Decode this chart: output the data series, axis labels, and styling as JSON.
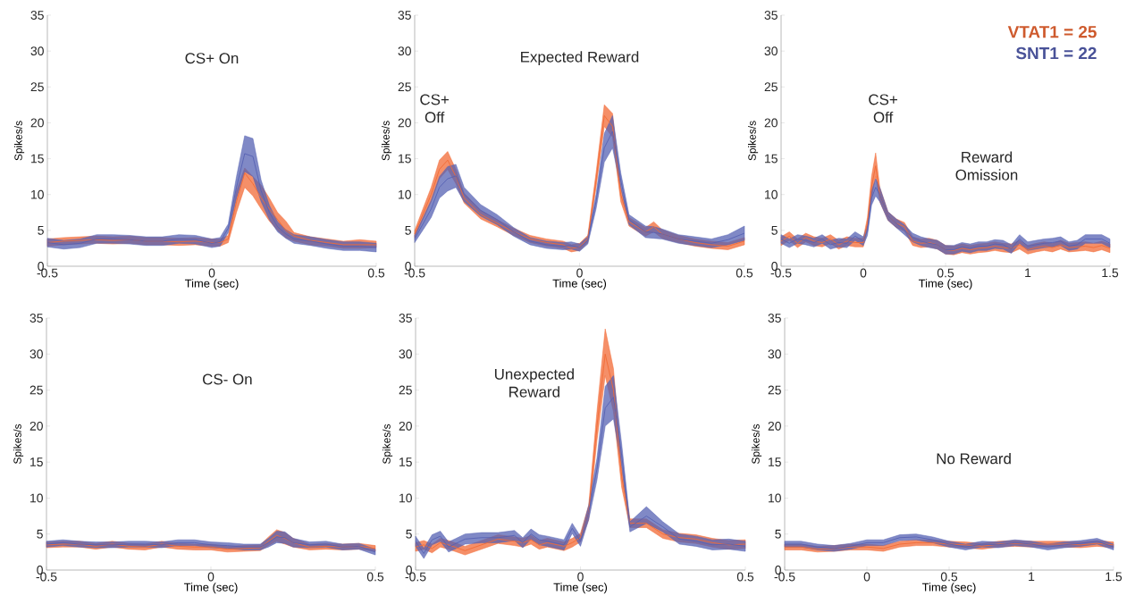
{
  "chart_data": [
    {
      "type": "line",
      "xlabel": "Time (sec)",
      "ylabel": "Spikes/s",
      "xlim": [
        -0.5,
        0.5
      ],
      "ylim": [
        0,
        35
      ],
      "xticks": [
        -0.5,
        0,
        0.5
      ],
      "yticks": [
        0,
        5,
        10,
        15,
        20,
        25,
        30,
        35
      ],
      "annotations": [
        "CS+ On"
      ],
      "x": [
        -0.5,
        -0.45,
        -0.4,
        -0.35,
        -0.3,
        -0.25,
        -0.2,
        -0.15,
        -0.1,
        -0.05,
        0,
        0.025,
        0.05,
        0.075,
        0.1,
        0.125,
        0.15,
        0.175,
        0.2,
        0.225,
        0.25,
        0.3,
        0.35,
        0.4,
        0.45,
        0.5
      ],
      "series": [
        {
          "color": "#f26a35",
          "values": [
            3.3,
            3.5,
            3.6,
            3.7,
            3.6,
            3.7,
            3.5,
            3.5,
            3.4,
            3.5,
            3.3,
            3.3,
            3.8,
            9,
            13,
            11.5,
            9.5,
            8,
            6.5,
            5,
            4.2,
            3.6,
            3.3,
            3,
            3,
            3
          ],
          "lower": [
            2.8,
            3,
            3.1,
            3.2,
            3.1,
            3.2,
            3,
            3,
            2.9,
            3,
            2.8,
            2.8,
            3.3,
            7.5,
            11,
            9.8,
            8,
            6.3,
            5,
            4,
            3.5,
            3,
            2.8,
            2.5,
            2.5,
            2.6
          ],
          "upper": [
            3.8,
            4,
            4.1,
            4.2,
            4.1,
            4.2,
            4,
            4,
            3.9,
            4,
            3.8,
            3.8,
            4.3,
            10.5,
            13.7,
            12.5,
            11.3,
            9.5,
            7.5,
            6.3,
            4.7,
            4.1,
            3.8,
            3.5,
            3.7,
            3.5
          ]
        },
        {
          "color": "#5661b3",
          "values": [
            3.3,
            3,
            3.2,
            3.8,
            3.8,
            3.7,
            3.5,
            3.5,
            3.8,
            3.7,
            3.2,
            3.4,
            5.3,
            11,
            15.7,
            15.3,
            10.5,
            7.5,
            5.5,
            4.5,
            3.8,
            3.5,
            3.1,
            2.8,
            2.8,
            2.6
          ],
          "lower": [
            2.7,
            2.4,
            2.6,
            3.2,
            3.2,
            3.1,
            2.9,
            2.9,
            3.2,
            3.1,
            2.6,
            2.8,
            4.7,
            9.5,
            13.2,
            12.5,
            9,
            6.5,
            4.8,
            3.9,
            3.2,
            2.9,
            2.5,
            2.2,
            2.2,
            2
          ],
          "upper": [
            3.9,
            3.6,
            3.8,
            4.4,
            4.4,
            4.3,
            4.1,
            4.1,
            4.4,
            4.3,
            3.8,
            4,
            5.9,
            12.5,
            18.2,
            17.8,
            12,
            8.5,
            6.2,
            5.1,
            4.4,
            4.1,
            3.7,
            3.4,
            3.4,
            3.2
          ]
        }
      ]
    },
    {
      "type": "line",
      "xlabel": "Time (sec)",
      "ylabel": "Spikes/s",
      "xlim": [
        -0.5,
        0.5
      ],
      "ylim": [
        0,
        35
      ],
      "xticks": [
        -0.5,
        0,
        0.5
      ],
      "yticks": [
        0,
        5,
        10,
        15,
        20,
        25,
        30,
        35
      ],
      "annotations": [
        "Expected Reward",
        "CS+ Off"
      ],
      "x": [
        -0.5,
        -0.45,
        -0.425,
        -0.4,
        -0.375,
        -0.35,
        -0.3,
        -0.25,
        -0.2,
        -0.15,
        -0.1,
        -0.05,
        -0.025,
        0,
        0.025,
        0.05,
        0.075,
        0.1,
        0.125,
        0.15,
        0.2,
        0.225,
        0.25,
        0.3,
        0.35,
        0.4,
        0.45,
        0.5
      ],
      "series": [
        {
          "color": "#f26a35",
          "values": [
            4.5,
            10,
            13.5,
            14.8,
            12.5,
            9.5,
            7.2,
            6,
            4.8,
            3.8,
            3.3,
            3,
            2.5,
            2.7,
            3.8,
            12,
            21,
            19.5,
            10,
            6.2,
            4.8,
            5.5,
            4.5,
            3.8,
            3.3,
            3,
            2.8,
            3.5
          ],
          "lower": [
            4,
            9,
            12.2,
            13.5,
            11.5,
            8.8,
            6.6,
            5.5,
            4.3,
            3.3,
            2.8,
            2.5,
            2,
            2.2,
            3.3,
            11,
            19.5,
            18,
            9,
            5.6,
            4.2,
            4.8,
            3.9,
            3.3,
            2.8,
            2.5,
            2.3,
            3
          ],
          "upper": [
            5,
            11,
            14.8,
            16,
            13.5,
            10.2,
            7.8,
            6.5,
            5.3,
            4.3,
            3.8,
            3.5,
            3,
            3.2,
            4.3,
            13,
            22.5,
            21.3,
            11,
            6.8,
            5.4,
            6.2,
            5.1,
            4.3,
            3.8,
            3.5,
            3.3,
            4
          ]
        },
        {
          "color": "#5661b3",
          "values": [
            3.8,
            8,
            11,
            12.2,
            12.6,
            10,
            7.8,
            6.5,
            4.8,
            3.5,
            3,
            2.8,
            2.9,
            2.6,
            3.6,
            9,
            16.5,
            18.8,
            12,
            6.5,
            4.8,
            4.7,
            4.5,
            3.8,
            3.5,
            3.2,
            3.7,
            4.6
          ],
          "lower": [
            3.3,
            6.8,
            9.5,
            10.5,
            11,
            9,
            7,
            5.8,
            4.2,
            3,
            2.5,
            2.3,
            2.4,
            2.1,
            3.1,
            8,
            14.5,
            16.5,
            11,
            5.8,
            4,
            3.9,
            3.8,
            3.2,
            2.9,
            2.6,
            3,
            3.6
          ],
          "upper": [
            4.3,
            9.2,
            12.5,
            13.9,
            14.2,
            11,
            8.6,
            7.2,
            5.4,
            4,
            3.5,
            3.3,
            3.4,
            3.1,
            4.1,
            10,
            18.5,
            21,
            13,
            7.2,
            5.6,
            5.5,
            5.2,
            4.4,
            4.1,
            3.8,
            4.4,
            5.6
          ]
        }
      ]
    },
    {
      "type": "line",
      "xlabel": "Time (sec)",
      "ylabel": "Spikes/s",
      "xlim": [
        -0.5,
        1.5
      ],
      "ylim": [
        0,
        35
      ],
      "xticks": [
        -0.5,
        0,
        0.5,
        1,
        1.5
      ],
      "yticks": [
        0,
        5,
        10,
        15,
        20,
        25,
        30,
        35
      ],
      "annotations": [
        "CS+ Off",
        "Reward Omission"
      ],
      "legend": "top right",
      "x": [
        -0.5,
        -0.45,
        -0.4,
        -0.35,
        -0.3,
        -0.25,
        -0.2,
        -0.15,
        -0.1,
        -0.05,
        0,
        0.025,
        0.05,
        0.075,
        0.1,
        0.15,
        0.2,
        0.25,
        0.3,
        0.35,
        0.4,
        0.45,
        0.5,
        0.55,
        0.6,
        0.65,
        0.7,
        0.75,
        0.8,
        0.85,
        0.9,
        0.95,
        1,
        1.05,
        1.1,
        1.15,
        1.2,
        1.25,
        1.3,
        1.35,
        1.4,
        1.45,
        1.5
      ],
      "series": [
        {
          "name": "VTAT1 = 25",
          "color": "#f26a35",
          "values": [
            3.5,
            4.2,
            3.2,
            4,
            3.5,
            3.3,
            3.8,
            3,
            3.5,
            3.3,
            3.3,
            6,
            11,
            14,
            10,
            7,
            6,
            5.5,
            3.5,
            3.2,
            3.3,
            3,
            2.3,
            2.2,
            2.5,
            2.3,
            2.5,
            2.6,
            2.8,
            2.6,
            2.5,
            3,
            2.3,
            2.6,
            2.8,
            2.6,
            3,
            2.6,
            2.7,
            2.8,
            2.6,
            2.9,
            2.5
          ],
          "lower": [
            2.9,
            3.6,
            2.6,
            3.4,
            2.9,
            2.7,
            3.2,
            2.4,
            2.9,
            2.7,
            2.7,
            5.2,
            9.5,
            12.5,
            9,
            6.4,
            5.4,
            4.9,
            2.9,
            2.6,
            2.7,
            2.4,
            1.7,
            1.6,
            1.9,
            1.7,
            1.9,
            2,
            2.2,
            2,
            1.9,
            2.4,
            1.7,
            2,
            2.2,
            2,
            2.4,
            2,
            2.1,
            2.2,
            2,
            2.3,
            1.9
          ],
          "upper": [
            4.1,
            4.8,
            3.8,
            4.6,
            4.1,
            3.9,
            4.4,
            3.6,
            4.1,
            3.9,
            3.9,
            6.8,
            12.5,
            15.8,
            11,
            7.6,
            6.6,
            6.1,
            4.1,
            3.8,
            3.9,
            3.6,
            2.9,
            2.8,
            3.1,
            2.9,
            3.1,
            3.2,
            3.4,
            3.2,
            3.1,
            3.6,
            2.9,
            3.2,
            3.4,
            3.2,
            3.6,
            3.2,
            3.3,
            3.4,
            3.2,
            3.5,
            3.1
          ]
        },
        {
          "name": "SNT1 = 22",
          "color": "#5661b3",
          "values": [
            3.8,
            3.2,
            3.8,
            3.6,
            3.3,
            3.8,
            3,
            3.3,
            3.2,
            4.2,
            3.5,
            5,
            9.5,
            11,
            10,
            7,
            6,
            5,
            4,
            3.5,
            3.2,
            3,
            2.3,
            2.3,
            2.7,
            2.5,
            2.8,
            2.8,
            3.1,
            3,
            2.4,
            3.8,
            2.8,
            3,
            3.2,
            3.3,
            3.5,
            2.8,
            3,
            3.8,
            3.8,
            3.8,
            3.2
          ],
          "lower": [
            3.2,
            2.6,
            3.2,
            3,
            2.7,
            3.2,
            2.4,
            2.7,
            2.6,
            3.6,
            2.9,
            4.3,
            8.5,
            9.8,
            9,
            6.4,
            5.4,
            4.4,
            3.4,
            2.9,
            2.6,
            2.4,
            1.7,
            1.7,
            2.1,
            1.9,
            2.2,
            2.2,
            2.5,
            2.4,
            1.8,
            3.2,
            2.2,
            2.4,
            2.6,
            2.7,
            2.9,
            2.2,
            2.4,
            3.2,
            3.2,
            3.2,
            2.6
          ],
          "upper": [
            4.4,
            3.8,
            4.4,
            4.2,
            3.9,
            4.4,
            3.6,
            3.9,
            3.8,
            4.8,
            4.1,
            5.7,
            10.5,
            12.2,
            11,
            7.6,
            6.6,
            5.8,
            4.6,
            4.1,
            3.8,
            3.6,
            2.9,
            2.9,
            3.3,
            3.1,
            3.4,
            3.4,
            3.7,
            3.6,
            3,
            4.4,
            3.4,
            3.6,
            3.8,
            3.9,
            4.1,
            3.4,
            3.6,
            4.4,
            4.4,
            4.4,
            3.8
          ]
        }
      ]
    },
    {
      "type": "line",
      "xlabel": "Time (sec)",
      "ylabel": "Spikes/s",
      "xlim": [
        -0.5,
        0.5
      ],
      "ylim": [
        0,
        35
      ],
      "xticks": [
        -0.5,
        0,
        0.5
      ],
      "yticks": [
        0,
        5,
        10,
        15,
        20,
        25,
        30,
        35
      ],
      "annotations": [
        "CS- On"
      ],
      "x": [
        -0.5,
        -0.45,
        -0.4,
        -0.35,
        -0.3,
        -0.25,
        -0.2,
        -0.15,
        -0.1,
        -0.05,
        0,
        0.05,
        0.1,
        0.15,
        0.175,
        0.2,
        0.225,
        0.25,
        0.3,
        0.35,
        0.4,
        0.45,
        0.5
      ],
      "series": [
        {
          "color": "#f26a35",
          "values": [
            3.5,
            3.6,
            3.6,
            3.3,
            3.6,
            3.3,
            3.2,
            3.6,
            3.3,
            3.2,
            3.2,
            2.9,
            3,
            3.1,
            4,
            4.8,
            4.4,
            3.8,
            3.2,
            3.3,
            3.2,
            3.3,
            3
          ],
          "lower": [
            3.1,
            3.2,
            3.2,
            2.9,
            3.2,
            2.9,
            2.8,
            3.2,
            2.9,
            2.8,
            2.8,
            2.5,
            2.6,
            2.7,
            3.4,
            4,
            3.6,
            3.2,
            2.8,
            2.9,
            2.8,
            2.9,
            2.6
          ],
          "upper": [
            3.9,
            4,
            4,
            3.7,
            4,
            3.7,
            3.6,
            4,
            3.7,
            3.6,
            3.6,
            3.3,
            3.4,
            3.5,
            4.6,
            5.6,
            5.2,
            4.4,
            3.6,
            3.7,
            3.6,
            3.7,
            3.4
          ]
        },
        {
          "color": "#5661b3",
          "values": [
            3.6,
            3.8,
            3.6,
            3.5,
            3.5,
            3.6,
            3.6,
            3.5,
            3.8,
            3.8,
            3.5,
            3.4,
            3.2,
            3.2,
            3.8,
            4.6,
            4.5,
            3.8,
            3.5,
            3.6,
            3.2,
            3.3,
            2.5
          ],
          "lower": [
            3.2,
            3.4,
            3.2,
            3.1,
            3.1,
            3.2,
            3.2,
            3.1,
            3.4,
            3.4,
            3.1,
            3,
            2.8,
            2.8,
            3.2,
            3.8,
            3.7,
            3.2,
            3.1,
            3.2,
            2.8,
            2.9,
            2.1
          ],
          "upper": [
            4,
            4.2,
            4,
            3.9,
            3.9,
            4,
            4,
            3.9,
            4.2,
            4.2,
            3.9,
            3.8,
            3.6,
            3.6,
            4.4,
            5.4,
            5.3,
            4.4,
            3.9,
            4,
            3.6,
            3.7,
            2.9
          ]
        }
      ]
    },
    {
      "type": "line",
      "xlabel": "Time (sec)",
      "ylabel": "Spikes/s",
      "xlim": [
        -0.5,
        0.5
      ],
      "ylim": [
        0,
        35
      ],
      "xticks": [
        -0.5,
        0,
        0.5
      ],
      "yticks": [
        0,
        5,
        10,
        15,
        20,
        25,
        30,
        35
      ],
      "annotations": [
        "Unexpected Reward"
      ],
      "x": [
        -0.5,
        -0.475,
        -0.45,
        -0.425,
        -0.4,
        -0.35,
        -0.3,
        -0.25,
        -0.2,
        -0.175,
        -0.15,
        -0.125,
        -0.1,
        -0.05,
        -0.025,
        0,
        0.025,
        0.05,
        0.075,
        0.1,
        0.125,
        0.15,
        0.2,
        0.25,
        0.3,
        0.35,
        0.4,
        0.45,
        0.5
      ],
      "series": [
        {
          "color": "#f26a35",
          "values": [
            3.2,
            3.5,
            3,
            3.8,
            3.5,
            2.7,
            3.5,
            4.3,
            4,
            3.8,
            4.2,
            3.5,
            3.8,
            3.3,
            3.8,
            4.5,
            8,
            20,
            30,
            25,
            13,
            6.5,
            6.5,
            5,
            4.5,
            4.3,
            3.8,
            3.5,
            3.6
          ],
          "lower": [
            2.6,
            2.9,
            2.4,
            3.2,
            2.9,
            2.1,
            2.9,
            3.7,
            3.4,
            3.2,
            3.6,
            2.9,
            3.2,
            2.7,
            3.2,
            3.9,
            7,
            18,
            27,
            22,
            11.5,
            5.9,
            5.9,
            4.4,
            3.9,
            3.7,
            3.2,
            2.9,
            3
          ],
          "upper": [
            3.8,
            4.1,
            3.6,
            4.4,
            4.1,
            3.3,
            4.1,
            4.9,
            4.6,
            4.4,
            4.8,
            4.1,
            4.4,
            3.9,
            4.4,
            5.1,
            9,
            22,
            33.5,
            28,
            14.5,
            7.1,
            7.1,
            5.6,
            5.1,
            4.9,
            4.4,
            4.1,
            4.2
          ]
        },
        {
          "color": "#5661b3",
          "values": [
            4,
            2.3,
            4.2,
            4.7,
            3.2,
            4.3,
            4.5,
            4.5,
            4.8,
            3.8,
            5,
            4.2,
            4,
            3.5,
            5.8,
            4,
            8,
            14,
            22.5,
            24,
            16,
            6,
            7.5,
            6,
            4.3,
            4,
            3.5,
            3.6,
            3.3
          ],
          "lower": [
            3.3,
            1.6,
            3.5,
            4,
            2.5,
            3.6,
            3.8,
            3.8,
            4.1,
            3.1,
            4.3,
            3.5,
            3.3,
            2.8,
            5.1,
            3.3,
            7,
            12.5,
            20,
            21,
            14.5,
            5.3,
            6.5,
            5.3,
            3.6,
            3.3,
            2.8,
            2.9,
            2.6
          ],
          "upper": [
            4.7,
            3,
            4.9,
            5.4,
            3.9,
            5,
            5.2,
            5.2,
            5.5,
            4.5,
            5.7,
            4.9,
            4.7,
            4.2,
            6.5,
            4.7,
            9,
            15.5,
            25.5,
            27,
            17.5,
            6.7,
            8.8,
            6.7,
            5,
            4.7,
            4.2,
            4.3,
            4
          ]
        }
      ]
    },
    {
      "type": "line",
      "xlabel": "Time (sec)",
      "ylabel": "Spikes/s",
      "xlim": [
        -0.5,
        1.5
      ],
      "ylim": [
        0,
        35
      ],
      "xticks": [
        -0.5,
        0,
        0.5,
        1,
        1.5
      ],
      "yticks": [
        0,
        5,
        10,
        15,
        20,
        25,
        30,
        35
      ],
      "annotations": [
        "No Reward"
      ],
      "x": [
        -0.5,
        -0.4,
        -0.3,
        -0.2,
        -0.1,
        0,
        0.1,
        0.2,
        0.3,
        0.4,
        0.5,
        0.6,
        0.7,
        0.8,
        0.9,
        1,
        1.1,
        1.2,
        1.3,
        1.4,
        1.5
      ],
      "series": [
        {
          "color": "#f26a35",
          "values": [
            3.2,
            3.2,
            2.9,
            3,
            3.2,
            3.2,
            3,
            3.6,
            3.8,
            3.8,
            3.6,
            3.5,
            3.3,
            3.6,
            3.7,
            3.6,
            3.6,
            3.6,
            3.5,
            3.7,
            3.5
          ],
          "lower": [
            2.8,
            2.8,
            2.5,
            2.6,
            2.8,
            2.8,
            2.6,
            3.2,
            3.4,
            3.4,
            3.2,
            3.1,
            2.9,
            3.2,
            3.3,
            3.2,
            3.2,
            3.2,
            3.1,
            3.3,
            3.1
          ],
          "upper": [
            3.6,
            3.6,
            3.3,
            3.4,
            3.6,
            3.6,
            3.4,
            4,
            4.2,
            4.2,
            4,
            3.9,
            3.7,
            4,
            4.1,
            4,
            4,
            4,
            3.9,
            4.1,
            3.9
          ]
        },
        {
          "color": "#5661b3",
          "values": [
            3.6,
            3.6,
            3.2,
            3,
            3.3,
            3.8,
            3.8,
            4.5,
            4.6,
            4.2,
            3.6,
            3.2,
            3.6,
            3.5,
            3.8,
            3.6,
            3.2,
            3.5,
            3.7,
            4,
            3.2
          ],
          "lower": [
            3.2,
            3.2,
            2.8,
            2.6,
            2.9,
            3.4,
            3.4,
            4.1,
            4.2,
            3.8,
            3.2,
            2.8,
            3.2,
            3.1,
            3.4,
            3.2,
            2.8,
            3.1,
            3.3,
            3.6,
            2.8
          ],
          "upper": [
            4,
            4,
            3.6,
            3.4,
            3.7,
            4.2,
            4.2,
            4.9,
            5,
            4.6,
            4,
            3.6,
            4,
            3.9,
            4.2,
            4,
            3.6,
            3.9,
            4.1,
            4.4,
            3.6
          ]
        }
      ]
    }
  ]
}
